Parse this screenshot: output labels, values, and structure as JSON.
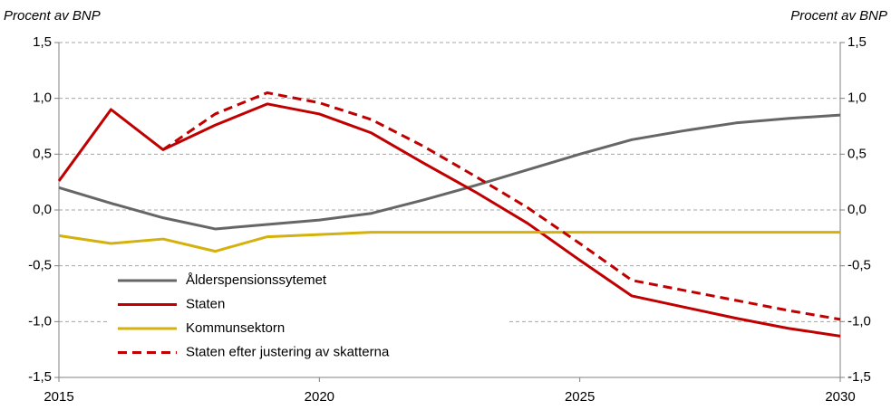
{
  "chart_data": {
    "type": "line",
    "y_label": "Procent av BNP",
    "y2_label": "Procent av BNP",
    "x": [
      2015,
      2016,
      2017,
      2018,
      2019,
      2020,
      2021,
      2022,
      2023,
      2024,
      2025,
      2026,
      2027,
      2028,
      2029,
      2030
    ],
    "xlim": [
      2015,
      2030
    ],
    "xticks": [
      2015,
      2020,
      2025,
      2030
    ],
    "ylim": [
      -1.5,
      1.5
    ],
    "yticks": [
      {
        "value": -1.5,
        "label": "-1,5"
      },
      {
        "value": -1.0,
        "label": "-1,0"
      },
      {
        "value": -0.5,
        "label": "-0,5"
      },
      {
        "value": 0,
        "label": "0,0"
      },
      {
        "value": 0.5,
        "label": "0,5"
      },
      {
        "value": 1.0,
        "label": "1,0"
      },
      {
        "value": 1.5,
        "label": "1,5"
      }
    ],
    "y2lim": [
      -1.5,
      1.5
    ],
    "y2ticks": [
      {
        "value": -1.5,
        "label": "-1,5"
      },
      {
        "value": -1.0,
        "label": "-1,0"
      },
      {
        "value": -0.5,
        "label": "-0,5"
      },
      {
        "value": 0,
        "label": "0,0"
      },
      {
        "value": 0.5,
        "label": "0,5"
      },
      {
        "value": 1.0,
        "label": "1,0"
      },
      {
        "value": 1.5,
        "label": "1,5"
      }
    ],
    "grid": true,
    "legend_position": "lower-left",
    "series": [
      {
        "name": "Ålderspensionssytemet",
        "color": "#666666",
        "line_style": "solid",
        "values": [
          0.2,
          0.06,
          -0.07,
          -0.17,
          -0.13,
          -0.09,
          -0.03,
          0.09,
          0.22,
          0.36,
          0.5,
          0.63,
          0.71,
          0.78,
          0.82,
          0.85
        ]
      },
      {
        "name": "Staten",
        "color": "#c00000",
        "line_style": "solid",
        "values": [
          0.26,
          0.9,
          0.54,
          0.76,
          0.95,
          0.86,
          0.69,
          0.42,
          0.16,
          -0.12,
          -0.45,
          -0.77,
          -0.87,
          -0.97,
          -1.06,
          -1.13
        ]
      },
      {
        "name": "Kommunsektorn",
        "color": "#d4b10c",
        "line_style": "solid",
        "values": [
          -0.23,
          -0.3,
          -0.26,
          -0.37,
          -0.24,
          -0.22,
          -0.2,
          -0.2,
          -0.2,
          -0.2,
          -0.2,
          -0.2,
          -0.2,
          -0.2,
          -0.2,
          -0.2
        ]
      },
      {
        "name": "Staten efter justering av skatterna",
        "color": "#c00000",
        "line_style": "dashed",
        "values": [
          null,
          null,
          0.54,
          0.86,
          1.05,
          0.96,
          0.81,
          0.57,
          0.3,
          0.02,
          -0.3,
          -0.63,
          -0.72,
          -0.81,
          -0.9,
          -0.98
        ]
      }
    ]
  }
}
